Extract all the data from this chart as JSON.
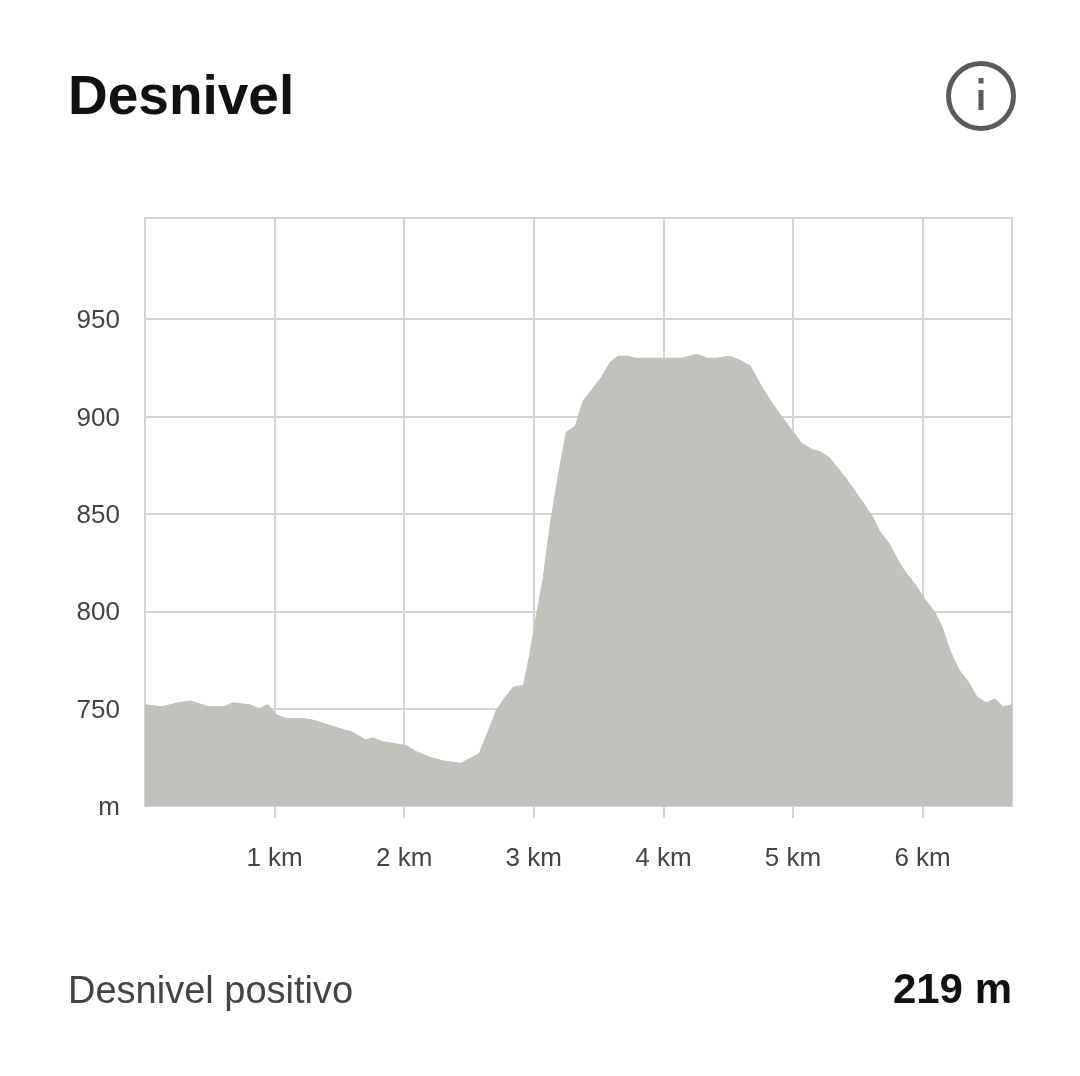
{
  "chart_data": {
    "type": "area",
    "title": "Desnivel",
    "x": [
      0,
      0.13,
      0.26,
      0.35,
      0.49,
      0.61,
      0.68,
      0.81,
      0.88,
      0.95,
      1.01,
      1.09,
      1.22,
      1.3,
      1.49,
      1.6,
      1.7,
      1.76,
      1.83,
      1.93,
      2.02,
      2.09,
      2.2,
      2.31,
      2.44,
      2.58,
      2.64,
      2.71,
      2.77,
      2.84,
      2.92,
      2.97,
      3.01,
      3.07,
      3.13,
      3.19,
      3.25,
      3.32,
      3.38,
      3.45,
      3.52,
      3.59,
      3.65,
      3.72,
      3.79,
      3.97,
      4.06,
      4.14,
      4.26,
      4.34,
      4.41,
      4.51,
      4.59,
      4.67,
      4.77,
      4.88,
      4.98,
      5.07,
      5.15,
      5.21,
      5.28,
      5.4,
      5.55,
      5.61,
      5.67,
      5.74,
      5.82,
      5.88,
      5.94,
      6.02,
      6.09,
      6.15,
      6.21,
      6.28,
      6.35,
      6.42,
      6.49,
      6.56,
      6.62,
      6.69
    ],
    "values": [
      752,
      751,
      753,
      754,
      751,
      751,
      753,
      752,
      750,
      752,
      747,
      745,
      745,
      744,
      740,
      738,
      734,
      735,
      733,
      732,
      731,
      728,
      725,
      723,
      722,
      727,
      737,
      749,
      755,
      761,
      762,
      778,
      794,
      816,
      846,
      870,
      892,
      895,
      908,
      914,
      920,
      928,
      931,
      931,
      930,
      930,
      930,
      930,
      932,
      930,
      930,
      931,
      929,
      926,
      914,
      903,
      894,
      886,
      883,
      882,
      879,
      869,
      855,
      849,
      841,
      835,
      825,
      819,
      814,
      806,
      800,
      792,
      780,
      770,
      764,
      756,
      753,
      755,
      751,
      752
    ],
    "color": "#c2c1bc",
    "xlim": [
      0,
      6.69
    ],
    "xticks": [
      {
        "value": 1,
        "label": "1 km"
      },
      {
        "value": 2,
        "label": "2 km"
      },
      {
        "value": 3,
        "label": "3 km"
      },
      {
        "value": 4,
        "label": "4 km"
      },
      {
        "value": 5,
        "label": "5 km"
      },
      {
        "value": 6,
        "label": "6 km"
      }
    ],
    "ylim": [
      700,
      1002
    ],
    "yticks": [
      {
        "value": 700,
        "label": "m"
      },
      750,
      800,
      850,
      900,
      950
    ],
    "grid": true,
    "annotations": [
      "Desnivel positivo",
      "219 m"
    ]
  }
}
